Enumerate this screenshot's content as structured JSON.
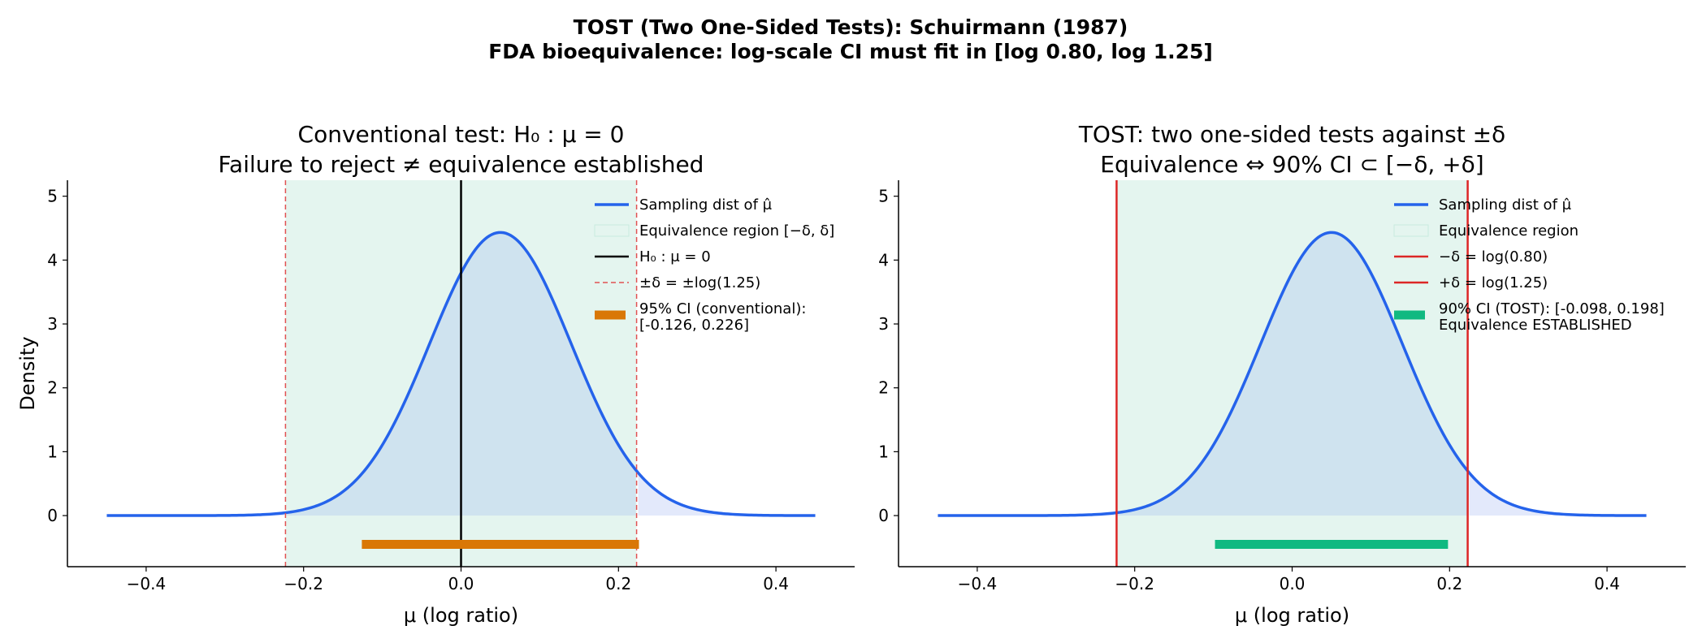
{
  "figure": {
    "suptitle_line1": "TOST (Two One-Sided Tests):  Schuirmann (1987)",
    "suptitle_line2": "FDA bioequivalence: log-scale CI must fit in [log 0.80, log 1.25]"
  },
  "colors": {
    "curve": "#2563eb",
    "curve_fill": "#cfe3ef",
    "equiv_region": "#e4f5ef",
    "tail_fill": "#e3e9fb",
    "h0_line": "#000000",
    "delta_dashed": "#e05252",
    "delta_solid": "#dc2626",
    "ci_conventional": "#d97706",
    "ci_tost": "#10b981"
  },
  "chart_data": [
    {
      "type": "line",
      "title_line1": "Conventional test: H₀ : μ = 0",
      "title_line2": "Failure to reject   ≠   equivalence established",
      "xlabel": "μ  (log ratio)",
      "ylabel": "Density",
      "xlim": [
        -0.5,
        0.5
      ],
      "ylim": [
        -0.8,
        5.25
      ],
      "xticks": [
        -0.4,
        -0.2,
        0.0,
        0.2,
        0.4
      ],
      "xtick_labels": [
        "−0.4",
        "−0.2",
        "0.0",
        "0.2",
        "0.4"
      ],
      "yticks": [
        0,
        1,
        2,
        3,
        4,
        5
      ],
      "ytick_labels": [
        "0",
        "1",
        "2",
        "3",
        "4",
        "5"
      ],
      "grid": false,
      "legend_position": "top-right",
      "series": [
        {
          "name": "Sampling dist of μ̂",
          "kind": "normal",
          "mean": 0.05,
          "sd": 0.09,
          "x_range": [
            -0.45,
            0.45
          ]
        }
      ],
      "equivalence_region": {
        "name": "Equivalence region [−δ, δ]",
        "x": [
          -0.223,
          0.223
        ]
      },
      "vlines": [
        {
          "name": "H₀ : μ = 0",
          "x": 0.0,
          "style": "solid-black"
        },
        {
          "name": "±δ = ±log(1.25)",
          "x": -0.223,
          "style": "dashed-red"
        },
        {
          "name": "",
          "x": 0.223,
          "style": "dashed-red"
        }
      ],
      "ci": {
        "name_line1": "95% CI (conventional):",
        "name_line2": "[-0.126, 0.226]",
        "low": -0.126,
        "high": 0.226,
        "y": -0.45,
        "color": "ci_conventional"
      }
    },
    {
      "type": "line",
      "title_line1": "TOST:  two one-sided tests against  ±δ",
      "title_line2": "Equivalence   ⇔   90% CI   ⊂   [−δ, +δ]",
      "xlabel": "μ  (log ratio)",
      "ylabel": "",
      "xlim": [
        -0.5,
        0.5
      ],
      "ylim": [
        -0.8,
        5.25
      ],
      "xticks": [
        -0.4,
        -0.2,
        0.0,
        0.2,
        0.4
      ],
      "xtick_labels": [
        "−0.4",
        "−0.2",
        "0.0",
        "0.2",
        "0.4"
      ],
      "yticks": [
        0,
        1,
        2,
        3,
        4,
        5
      ],
      "ytick_labels": [
        "0",
        "1",
        "2",
        "3",
        "4",
        "5"
      ],
      "grid": false,
      "legend_position": "top-right",
      "series": [
        {
          "name": "Sampling dist of μ̂",
          "kind": "normal",
          "mean": 0.05,
          "sd": 0.09,
          "x_range": [
            -0.45,
            0.45
          ]
        }
      ],
      "equivalence_region": {
        "name": "Equivalence region",
        "x": [
          -0.223,
          0.223
        ]
      },
      "vlines": [
        {
          "name": "−δ = log(0.80)",
          "x": -0.223,
          "style": "solid-red"
        },
        {
          "name": "+δ = log(1.25)",
          "x": 0.223,
          "style": "solid-red"
        }
      ],
      "ci": {
        "name_line1": "90% CI (TOST): [-0.098, 0.198]",
        "name_line2": "Equivalence ESTABLISHED",
        "low": -0.098,
        "high": 0.198,
        "y": -0.45,
        "color": "ci_tost"
      }
    }
  ]
}
